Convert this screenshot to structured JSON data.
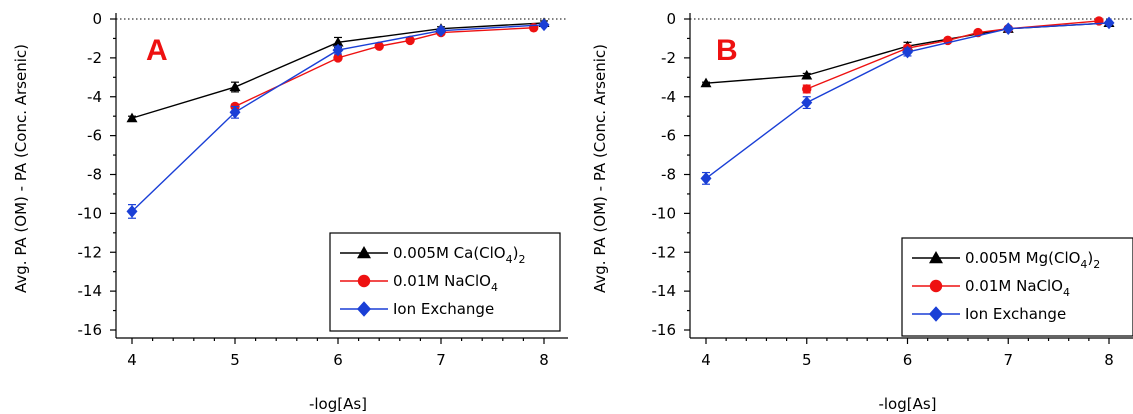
{
  "colors": {
    "black": "#000000",
    "red": "#ee1111",
    "blue": "#1a3fd6",
    "letter": "#ee1111"
  },
  "chart_data": [
    {
      "type": "line",
      "panel_label": "A",
      "xlabel": "-log[As]",
      "ylabel": "Avg. PA (OM) - PA (Conc. Arsenic)",
      "xlim": [
        3.8,
        8.2
      ],
      "ylim": [
        -16.5,
        0.5
      ],
      "xticks": [
        4,
        5,
        6,
        7,
        8
      ],
      "yticks": [
        0,
        -2,
        -4,
        -6,
        -8,
        -10,
        -12,
        -14,
        -16
      ],
      "zero_line": true,
      "legend_position": "bottom-right",
      "series": [
        {
          "name": "0.005M Ca(ClO4)2",
          "label_main": "0.005M Ca(ClO",
          "sub1": "4",
          "label_end": ")",
          "sub2": "2",
          "color": "#000000",
          "marker": "triangle",
          "x": [
            4,
            5,
            6,
            7,
            8
          ],
          "y": [
            -5.1,
            -3.5,
            -1.2,
            -0.5,
            -0.2
          ],
          "err": [
            0.1,
            0.25,
            0.25,
            0.1,
            0.1
          ]
        },
        {
          "name": "0.01M NaClO4",
          "label_main": "0.01M NaClO",
          "sub1": "4",
          "label_end": "",
          "sub2": "",
          "color": "#ee1111",
          "marker": "circle",
          "x": [
            5,
            6,
            6.4,
            6.7,
            7,
            7.9
          ],
          "y": [
            -4.5,
            -2.0,
            -1.4,
            -1.1,
            -0.7,
            -0.45
          ],
          "err": [
            0.1,
            0.1,
            0.05,
            0.05,
            0.05,
            0.05
          ]
        },
        {
          "name": "Ion Exchange",
          "label_main": "Ion Exchange",
          "sub1": "",
          "label_end": "",
          "sub2": "",
          "color": "#1a3fd6",
          "marker": "diamond",
          "x": [
            4,
            5,
            6,
            7,
            8
          ],
          "y": [
            -9.9,
            -4.8,
            -1.6,
            -0.6,
            -0.3
          ],
          "err": [
            0.35,
            0.3,
            0.2,
            0.1,
            0.05
          ]
        }
      ]
    },
    {
      "type": "line",
      "panel_label": "B",
      "xlabel": "-log[As]",
      "ylabel": "Avg. PA (OM) - PA (Conc. Arsenic)",
      "xlim": [
        3.8,
        8.2
      ],
      "ylim": [
        -16.5,
        0.5
      ],
      "xticks": [
        4,
        5,
        6,
        7,
        8
      ],
      "yticks": [
        0,
        -2,
        -4,
        -6,
        -8,
        -10,
        -12,
        -14,
        -16
      ],
      "zero_line": true,
      "legend_position": "bottom-right",
      "series": [
        {
          "name": "0.005M Mg(ClO4)2",
          "label_main": "0.005M Mg(ClO",
          "sub1": "4",
          "label_end": ")",
          "sub2": "2",
          "color": "#000000",
          "marker": "triangle",
          "x": [
            4,
            5,
            6,
            7,
            8
          ],
          "y": [
            -3.3,
            -2.9,
            -1.4,
            -0.5,
            -0.2
          ],
          "err": [
            0.05,
            0.1,
            0.2,
            0.1,
            0.05
          ]
        },
        {
          "name": "0.01M NaClO4",
          "label_main": "0.01M NaClO",
          "sub1": "4",
          "label_end": "",
          "sub2": "",
          "color": "#ee1111",
          "marker": "circle",
          "x": [
            5,
            6,
            6.4,
            6.7,
            7,
            7.9
          ],
          "y": [
            -3.6,
            -1.5,
            -1.1,
            -0.7,
            -0.5,
            -0.1
          ],
          "err": [
            0.2,
            0.15,
            0.05,
            0.05,
            0.05,
            0.05
          ]
        },
        {
          "name": "Ion Exchange",
          "label_main": "Ion Exchange",
          "sub1": "",
          "label_end": "",
          "sub2": "",
          "color": "#1a3fd6",
          "marker": "diamond",
          "x": [
            4,
            5,
            6,
            7,
            8
          ],
          "y": [
            -8.2,
            -4.3,
            -1.7,
            -0.5,
            -0.2
          ],
          "err": [
            0.3,
            0.3,
            0.2,
            0.05,
            0.05
          ]
        }
      ]
    }
  ]
}
